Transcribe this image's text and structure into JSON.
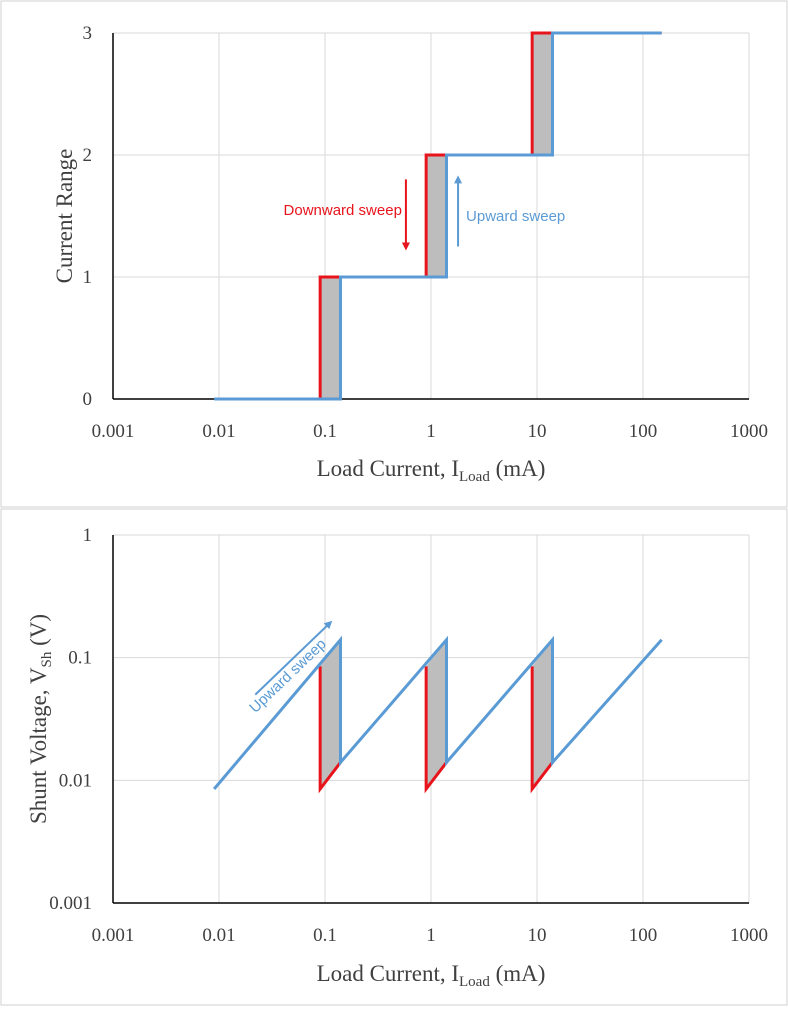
{
  "colors": {
    "downward": "#e8141c",
    "upward": "#5b9bd5",
    "hysteresis_fill": "#bdbdbd",
    "grid": "#d9d9d9",
    "axis": "#000000",
    "text": "#404040",
    "panel_border": "#d0d0d0"
  },
  "chart_data": [
    {
      "type": "line",
      "title": "",
      "xlabel": "Load Current, I",
      "xlabel_sub": "Load",
      "xlabel_unit": "(mA)",
      "ylabel": "Current Range",
      "xscale": "log",
      "xlim": [
        0.001,
        1000
      ],
      "ylim": [
        0,
        3
      ],
      "x_ticks": [
        0.001,
        0.01,
        0.1,
        1,
        10,
        100,
        1000
      ],
      "x_tick_labels": [
        "0.001",
        "0.01",
        "0.1",
        "1",
        "10",
        "100",
        "1000"
      ],
      "y_ticks": [
        0,
        1,
        2,
        3
      ],
      "y_tick_labels": [
        "0",
        "1",
        "2",
        "3"
      ],
      "grid": true,
      "series": [
        {
          "name": "Downward sweep",
          "color_key": "downward",
          "points": [
            [
              0.09,
              0
            ],
            [
              0.09,
              1
            ],
            [
              0.9,
              1
            ],
            [
              0.9,
              2
            ],
            [
              9,
              2
            ],
            [
              9,
              3
            ],
            [
              150,
              3
            ]
          ]
        },
        {
          "name": "Upward sweep",
          "color_key": "upward",
          "points": [
            [
              0.009,
              0
            ],
            [
              0.14,
              0
            ],
            [
              0.14,
              1
            ],
            [
              1.4,
              1
            ],
            [
              1.4,
              2
            ],
            [
              14,
              2
            ],
            [
              14,
              3
            ],
            [
              150,
              3
            ]
          ]
        }
      ],
      "hysteresis_regions": [
        {
          "x": [
            0.09,
            0.14
          ],
          "y": [
            0,
            1
          ]
        },
        {
          "x": [
            0.9,
            1.4
          ],
          "y": [
            1,
            2
          ]
        },
        {
          "x": [
            9,
            14
          ],
          "y": [
            2,
            3
          ]
        }
      ],
      "annotations": [
        {
          "text": "Downward sweep",
          "color_key": "downward",
          "arrow": "down",
          "x": 0.28,
          "y": 1.55,
          "arrow_x": 0.58,
          "arrow_y_from": 1.8,
          "arrow_y_to": 1.25
        },
        {
          "text": "Upward sweep",
          "color_key": "upward",
          "arrow": "up",
          "x": 2.1,
          "y": 1.5,
          "arrow_x": 1.8,
          "arrow_y_from": 1.25,
          "arrow_y_to": 1.8
        }
      ]
    },
    {
      "type": "line",
      "title": "",
      "xlabel": "Load Current, I",
      "xlabel_sub": "Load",
      "xlabel_unit": "(mA)",
      "ylabel": "Shunt Voltage, V",
      "ylabel_sub": "Sh",
      "ylabel_unit": "(V)",
      "xscale": "log",
      "yscale": "log",
      "xlim": [
        0.001,
        1000
      ],
      "ylim": [
        0.001,
        1
      ],
      "x_ticks": [
        0.001,
        0.01,
        0.1,
        1,
        10,
        100,
        1000
      ],
      "x_tick_labels": [
        "0.001",
        "0.01",
        "0.1",
        "1",
        "10",
        "100",
        "1000"
      ],
      "y_ticks": [
        0.001,
        0.01,
        0.1,
        1
      ],
      "y_tick_labels": [
        "0.001",
        "0.01",
        "0.1",
        "1"
      ],
      "grid": true,
      "series": [
        {
          "name": "Downward sweep",
          "color_key": "downward",
          "segments": [
            [
              [
                0.09,
                0.085
              ],
              [
                0.09,
                0.0085
              ],
              [
                0.14,
                0.014
              ]
            ],
            [
              [
                0.9,
                0.085
              ],
              [
                0.9,
                0.0085
              ],
              [
                1.4,
                0.014
              ]
            ],
            [
              [
                9,
                0.085
              ],
              [
                9,
                0.0085
              ],
              [
                14,
                0.014
              ]
            ]
          ]
        },
        {
          "name": "Upward sweep",
          "color_key": "upward",
          "points": [
            [
              0.009,
              0.0085
            ],
            [
              0.14,
              0.14
            ],
            [
              0.14,
              0.014
            ],
            [
              1.4,
              0.14
            ],
            [
              1.4,
              0.014
            ],
            [
              14,
              0.14
            ],
            [
              14,
              0.014
            ],
            [
              150,
              0.14
            ]
          ]
        }
      ],
      "hysteresis_regions": [
        [
          [
            0.09,
            0.085
          ],
          [
            0.14,
            0.14
          ],
          [
            0.14,
            0.014
          ],
          [
            0.09,
            0.0085
          ]
        ],
        [
          [
            0.9,
            0.085
          ],
          [
            1.4,
            0.14
          ],
          [
            1.4,
            0.014
          ],
          [
            0.9,
            0.0085
          ]
        ],
        [
          [
            9,
            0.085
          ],
          [
            14,
            0.14
          ],
          [
            14,
            0.014
          ],
          [
            9,
            0.0085
          ]
        ]
      ],
      "annotations": [
        {
          "text": "Upward sweep",
          "color_key": "upward",
          "arrow": "diagonal",
          "x": 0.022,
          "y": 0.035,
          "arrow_from": [
            0.022,
            0.05
          ],
          "arrow_to": [
            0.11,
            0.19
          ]
        }
      ]
    }
  ]
}
